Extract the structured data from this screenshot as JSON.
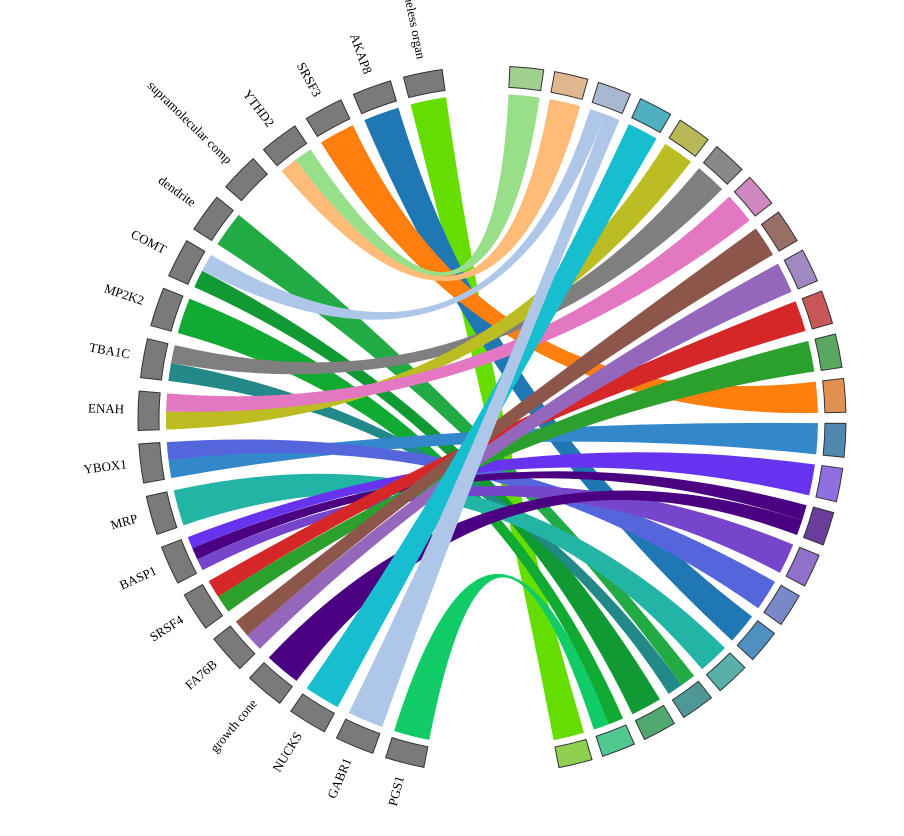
{
  "diagram": {
    "type": "chord",
    "left_labels": [
      "PGS1",
      "GABR1",
      "NUCKS",
      "growth cone",
      "FA76B",
      "SRSF4",
      "BASP1",
      "MRP",
      "YBOX1",
      "ENAH",
      "TBA1C",
      "MP2K2",
      "COMT",
      "dendrite",
      "supramolecular comp",
      "YTHD2",
      "SRSF3",
      "AKAP8",
      "r membraneless organ"
    ],
    "right_segment_colors": [
      "#90d050",
      "#50c890",
      "#50a870",
      "#509898",
      "#58b0a8",
      "#5090c0",
      "#7888c8",
      "#9070c8",
      "#6a3d9a",
      "#9070e0",
      "#5088b0",
      "#e09050",
      "#58a860",
      "#c85858",
      "#a088c0",
      "#987068",
      "#d088c0",
      "#888888",
      "#b8b858",
      "#50b0c0",
      "#a8b8d0",
      "#e0b890",
      "#a0d090"
    ],
    "chords": [
      {
        "from": 18,
        "to": 0,
        "color": "#66dd00"
      },
      {
        "from": 17,
        "to": 5,
        "color": "#1f77b4"
      },
      {
        "from": 16,
        "to": 11,
        "color": "#ff7f0e"
      },
      {
        "from": 15,
        "to": 21,
        "color": "#ffbb78"
      },
      {
        "from": 15,
        "to": 22,
        "color": "#98df8a"
      },
      {
        "from": 13,
        "to": 3,
        "color": "#22aa44"
      },
      {
        "from": 12,
        "to": 2,
        "color": "#119933"
      },
      {
        "from": 12,
        "to": 20,
        "color": "#aec7e8"
      },
      {
        "from": 11,
        "to": 1,
        "color": "#11aa33"
      },
      {
        "from": 10,
        "to": 3,
        "color": "#228888"
      },
      {
        "from": 10,
        "to": 17,
        "color": "#7f7f7f"
      },
      {
        "from": 9,
        "to": 18,
        "color": "#bcbd22"
      },
      {
        "from": 9,
        "to": 16,
        "color": "#e377c2"
      },
      {
        "from": 8,
        "to": 10,
        "color": "#3388cc"
      },
      {
        "from": 8,
        "to": 6,
        "color": "#5566dd"
      },
      {
        "from": 7,
        "to": 4,
        "color": "#22b5a5"
      },
      {
        "from": 6,
        "to": 7,
        "color": "#7744cc"
      },
      {
        "from": 6,
        "to": 8,
        "color": "#4b0082"
      },
      {
        "from": 6,
        "to": 9,
        "color": "#6633ee"
      },
      {
        "from": 5,
        "to": 12,
        "color": "#2ca02c"
      },
      {
        "from": 5,
        "to": 13,
        "color": "#d62728"
      },
      {
        "from": 4,
        "to": 14,
        "color": "#9467bd"
      },
      {
        "from": 4,
        "to": 15,
        "color": "#8c564b"
      },
      {
        "from": 3,
        "to": 8,
        "color": "#4b0082"
      },
      {
        "from": 2,
        "to": 19,
        "color": "#17becf"
      },
      {
        "from": 1,
        "to": 20,
        "color": "#aec7e8"
      },
      {
        "from": 0,
        "to": 1,
        "color": "#11cc66"
      }
    ]
  }
}
